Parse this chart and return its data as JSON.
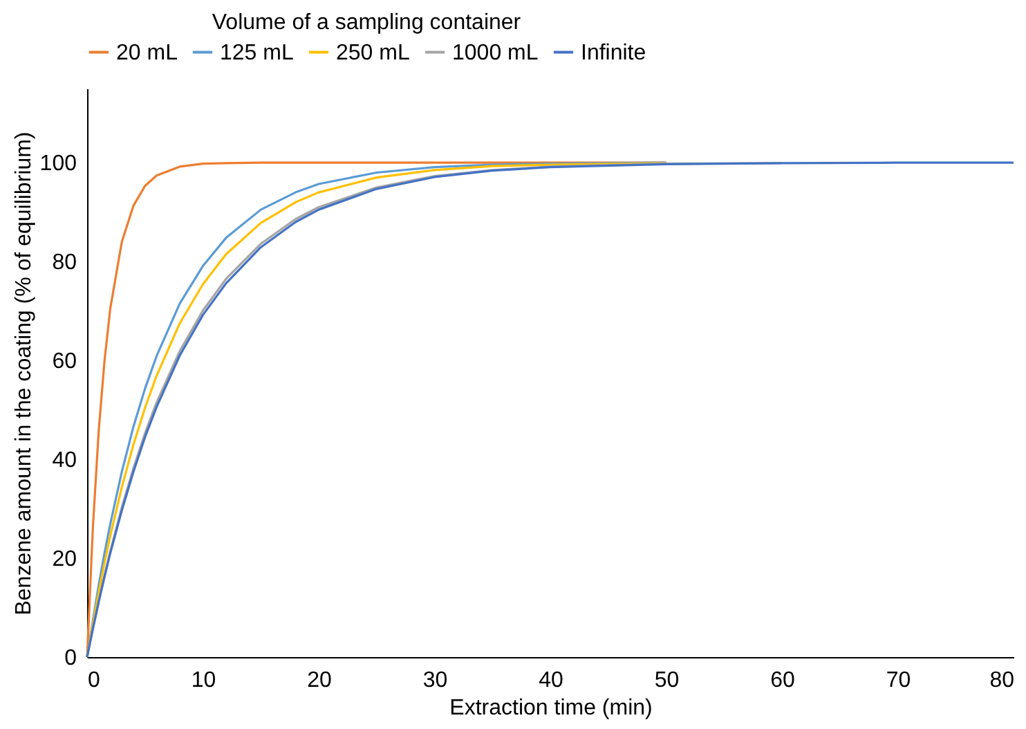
{
  "chart_data": {
    "type": "line",
    "xlabel": "Extraction time (min)",
    "ylabel": "Benzene amount in the coating (% of equilibrium)",
    "legend_title": "Volume of a sampling container",
    "x": [
      0,
      0.5,
      1,
      1.5,
      2,
      3,
      4,
      5,
      6,
      8,
      10,
      12,
      15,
      18,
      20,
      25,
      30,
      35,
      40,
      50,
      60,
      70,
      80
    ],
    "series": [
      {
        "name": "20 mL",
        "color": "#ed7d31",
        "values": [
          0,
          26.3,
          45.7,
          59.9,
          70.5,
          84.0,
          91.3,
          95.3,
          97.4,
          99.2,
          99.8,
          99.9,
          100,
          100,
          100,
          100,
          100,
          100,
          100,
          100,
          null,
          null,
          null
        ]
      },
      {
        "name": "125 mL",
        "color": "#5b9bd5",
        "values": [
          0,
          7.5,
          14.5,
          21.0,
          26.9,
          37.5,
          46.6,
          54.3,
          60.9,
          71.5,
          79.1,
          84.8,
          90.5,
          94.0,
          95.7,
          98.0,
          99.1,
          99.6,
          99.8,
          100,
          null,
          null,
          null
        ]
      },
      {
        "name": "250 mL",
        "color": "#ffc000",
        "values": [
          0,
          6.8,
          13.1,
          19.0,
          24.5,
          34.4,
          43.0,
          50.4,
          56.9,
          67.5,
          75.4,
          81.5,
          87.8,
          92.0,
          94.0,
          97.0,
          98.5,
          99.3,
          99.6,
          99.9,
          null,
          null,
          null
        ]
      },
      {
        "name": "1000 mL",
        "color": "#a5a5a5",
        "values": [
          0,
          5.9,
          11.4,
          16.5,
          21.4,
          30.3,
          38.2,
          45.3,
          51.5,
          61.9,
          70.1,
          76.5,
          83.6,
          88.6,
          91.0,
          95.0,
          97.3,
          98.5,
          99.2,
          99.8,
          99.9,
          null,
          null
        ]
      },
      {
        "name": "Infinite",
        "color": "#4472c4",
        "values": [
          0,
          5.7,
          11.1,
          16.2,
          21.0,
          29.7,
          37.5,
          44.5,
          50.6,
          61.0,
          69.2,
          75.6,
          82.9,
          88.0,
          90.5,
          94.7,
          97.1,
          98.4,
          99.1,
          99.7,
          99.9,
          100,
          100
        ]
      }
    ],
    "xlim": [
      0,
      80
    ],
    "xticks": [
      0,
      10,
      20,
      30,
      40,
      50,
      60,
      70,
      80
    ],
    "ylim": [
      0,
      115
    ],
    "yticks": [
      0,
      20,
      40,
      60,
      80,
      100
    ],
    "grid": false,
    "legend": "top",
    "line_style": "solid",
    "marker": "none"
  }
}
